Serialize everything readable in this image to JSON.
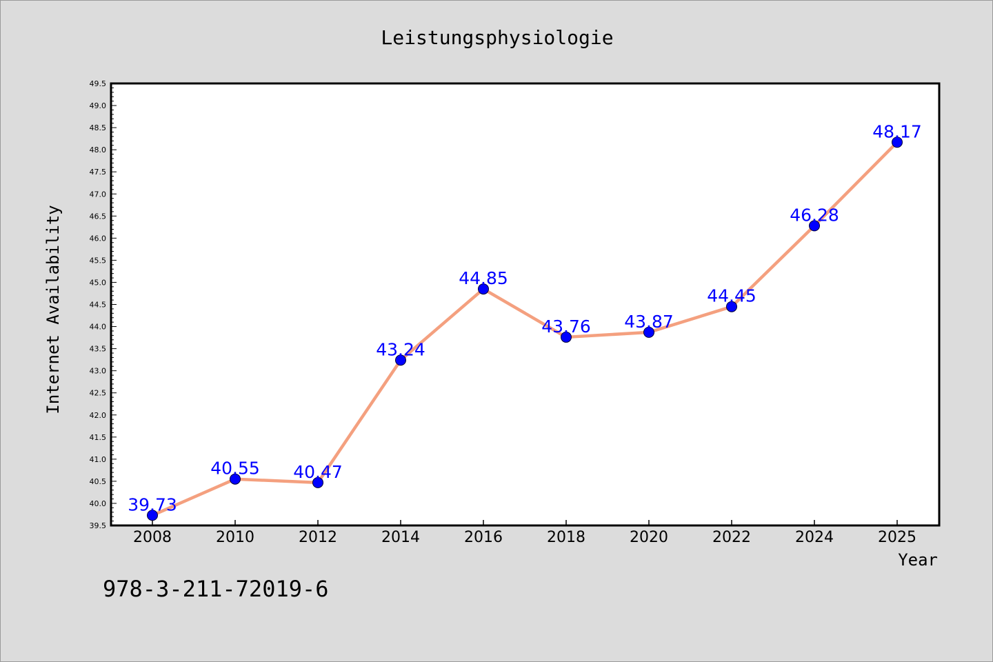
{
  "chart_data": {
    "type": "line",
    "title": "Leistungsphysiologie",
    "xlabel": "Year",
    "ylabel": "Internet Availability",
    "categories": [
      "2008",
      "2010",
      "2012",
      "2014",
      "2016",
      "2018",
      "2020",
      "2022",
      "2024",
      "2025"
    ],
    "series": [
      {
        "values": [
          39.73,
          40.55,
          40.47,
          43.24,
          44.85,
          43.76,
          43.87,
          44.45,
          46.28,
          48.17
        ]
      }
    ],
    "data_labels": [
      "39.73",
      "40.55",
      "40.47",
      "43.24",
      "44.85",
      "43.76",
      "43.87",
      "44.45",
      "46.28",
      "48.17"
    ],
    "ylim": [
      39.5,
      49.5
    ],
    "ytick_labels": [
      "39.5",
      "40.0",
      "40.5",
      "41.0",
      "41.5",
      "42.0",
      "42.5",
      "43.0",
      "43.5",
      "44.0",
      "44.5",
      "45.0",
      "45.5",
      "46.0",
      "46.5",
      "47.0",
      "47.5",
      "48.0",
      "48.5",
      "49.0",
      "49.5"
    ],
    "grid": false,
    "colors": {
      "line": "#f4a07f",
      "marker": "#0000ff",
      "label": "#0000ff",
      "background": "#dcdcdc",
      "plot_background": "#ffffff"
    }
  },
  "footer_text": "978-3-211-72019-6"
}
